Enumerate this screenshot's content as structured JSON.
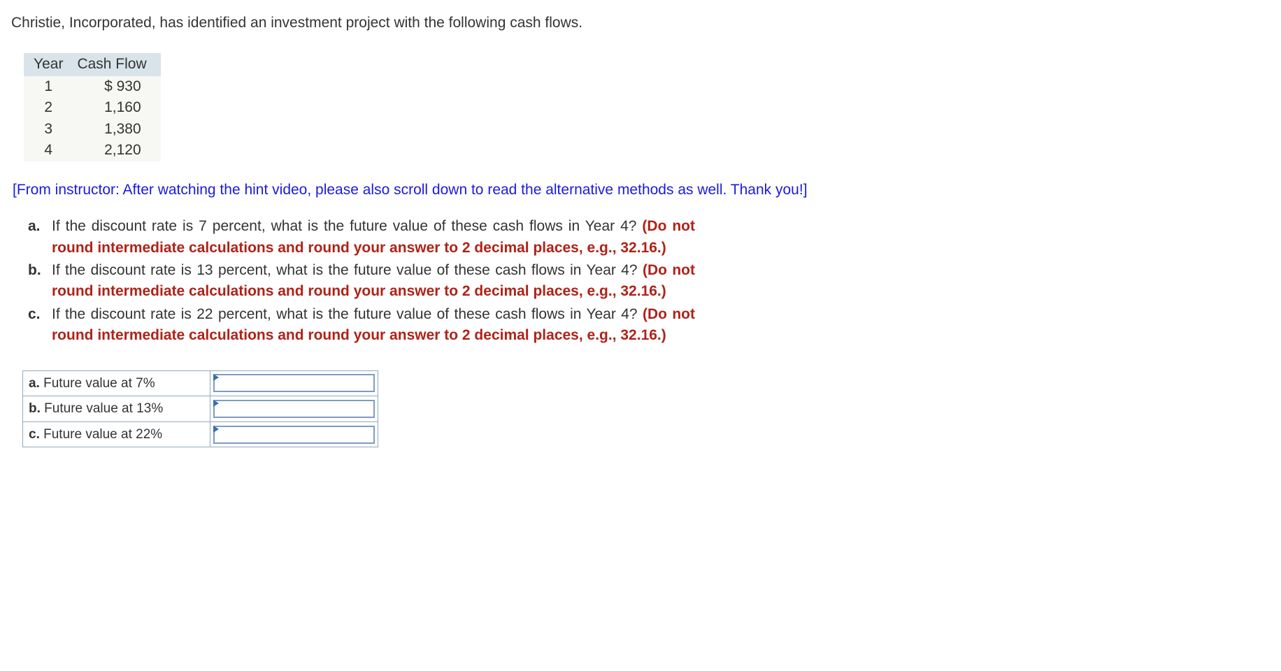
{
  "intro": "Christie, Incorporated, has identified an investment project with the following cash flows.",
  "table": {
    "headers": {
      "year": "Year",
      "cash_flow": "Cash Flow"
    },
    "rows": [
      {
        "year": "1",
        "cash_flow": "$ 930"
      },
      {
        "year": "2",
        "cash_flow": "1,160"
      },
      {
        "year": "3",
        "cash_flow": "1,380"
      },
      {
        "year": "4",
        "cash_flow": "2,120"
      }
    ],
    "header_bg": "#d9e4ea",
    "row_bg": "#f7f7f4"
  },
  "instructor_note": "[From instructor: After watching the hint video, please also scroll down to read the alternative methods as well. Thank you!]",
  "questions": {
    "a": {
      "marker": "a.",
      "text": "If the discount rate is 7 percent, what is the future value of these cash flows in Year 4? ",
      "hint": "(Do not round intermediate calculations and round your answer to 2 decimal places, e.g., 32.16.)"
    },
    "b": {
      "marker": "b.",
      "text": "If the discount rate is 13 percent, what is the future value of these cash flows in Year 4? ",
      "hint": "(Do not round intermediate calculations and round your answer to 2 decimal places, e.g., 32.16.)"
    },
    "c": {
      "marker": "c.",
      "text": "If the discount rate is 22 percent, what is the future value of these cash flows in Year 4? ",
      "hint": "(Do not round intermediate calculations and round your answer to 2 decimal places, e.g., 32.16.)"
    }
  },
  "answers": {
    "a": {
      "marker": "a.",
      "label": " Future value at 7%",
      "value": ""
    },
    "b": {
      "marker": "b.",
      "label": " Future value at 13%",
      "value": ""
    },
    "c": {
      "marker": "c.",
      "label": " Future value at 22%",
      "value": ""
    }
  },
  "colors": {
    "instructor_note": "#1a1ae0",
    "hint_red": "#b02218",
    "answer_border": "#93a8bf",
    "input_border": "#7e9bc4"
  }
}
